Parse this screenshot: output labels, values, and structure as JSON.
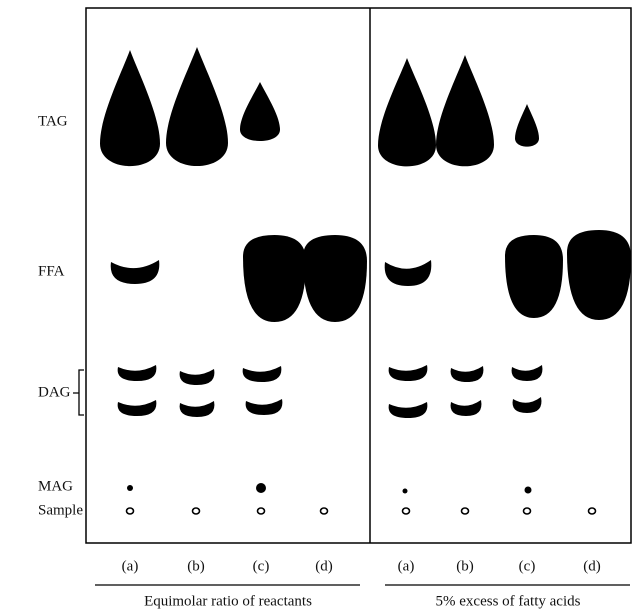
{
  "row_labels": {
    "tag": "TAG",
    "ffa": "FFA",
    "dag": "DAG",
    "mag": "MAG",
    "sample": "Sample"
  },
  "lanes": {
    "left": [
      "(a)",
      "(b)",
      "(c)",
      "(d)"
    ],
    "right": [
      "(a)",
      "(b)",
      "(c)",
      "(d)"
    ]
  },
  "groups": [
    "Equimolar ratio of reactants",
    "5% excess of fatty acids"
  ]
}
